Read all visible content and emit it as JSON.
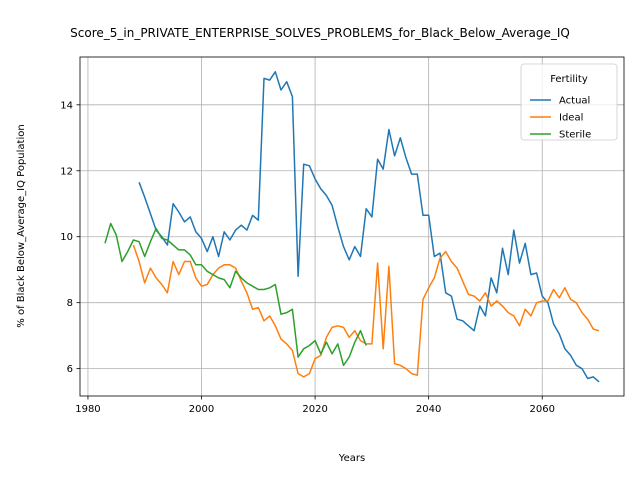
{
  "chart_data": {
    "type": "line",
    "title": "Score_5_in_PRIVATE_ENTERPRISE_SOLVES_PROBLEMS_for_Black_Below_Average_IQ",
    "xlabel": "Years",
    "ylabel": "% of Black Below_Average_IQ Population",
    "xlim": [
      1978.6,
      2074.4
    ],
    "ylim": [
      5.17,
      15.45
    ],
    "xticks": [
      1980,
      2000,
      2020,
      2040,
      2060
    ],
    "yticks": [
      6,
      8,
      10,
      12,
      14
    ],
    "grid": true,
    "legend": {
      "title": "Fertility",
      "position": "top-right"
    },
    "series": [
      {
        "name": "Actual",
        "color": "#1f77b4",
        "x": [
          1989,
          1990,
          1991,
          1992,
          1993,
          1994,
          1995,
          1996,
          1997,
          1998,
          1999,
          2000,
          2001,
          2002,
          2003,
          2004,
          2005,
          2006,
          2007,
          2008,
          2009,
          2010,
          2011,
          2012,
          2013,
          2014,
          2015,
          2016,
          2017,
          2018,
          2019,
          2020,
          2021,
          2022,
          2023,
          2024,
          2025,
          2026,
          2027,
          2028,
          2029,
          2030,
          2031,
          2032,
          2033,
          2034,
          2035,
          2036,
          2037,
          2038,
          2039,
          2040,
          2041,
          2042,
          2043,
          2044,
          2045,
          2046,
          2047,
          2048,
          2049,
          2050,
          2051,
          2052,
          2053,
          2054,
          2055,
          2056,
          2057,
          2058,
          2059,
          2060,
          2061,
          2062,
          2063,
          2064,
          2065,
          2066,
          2067,
          2068,
          2069,
          2070
        ],
        "y": [
          11.65,
          11.2,
          10.7,
          10.2,
          10.0,
          9.75,
          11.0,
          10.75,
          10.45,
          10.6,
          10.15,
          9.95,
          9.55,
          10.0,
          9.4,
          10.15,
          9.9,
          10.2,
          10.35,
          10.2,
          10.65,
          10.5,
          14.8,
          14.75,
          15.0,
          14.45,
          14.7,
          14.25,
          8.8,
          12.2,
          12.15,
          11.75,
          11.45,
          11.25,
          10.95,
          10.3,
          9.7,
          9.3,
          9.7,
          9.4,
          10.85,
          10.6,
          12.35,
          12.05,
          13.25,
          12.45,
          13.0,
          12.4,
          11.9,
          11.9,
          10.65,
          10.65,
          9.4,
          9.5,
          8.3,
          8.2,
          7.5,
          7.45,
          7.3,
          7.15,
          7.9,
          7.6,
          8.75,
          8.3,
          9.65,
          8.85,
          10.2,
          9.2,
          9.8,
          8.85,
          8.9,
          8.2,
          8.0,
          7.35,
          7.05,
          6.6,
          6.4,
          6.1,
          6.0,
          5.7,
          5.75,
          5.6
        ]
      },
      {
        "name": "Ideal",
        "color": "#ff7f0e",
        "x": [
          1988,
          1989,
          1990,
          1991,
          1992,
          1993,
          1994,
          1995,
          1996,
          1997,
          1998,
          1999,
          2000,
          2001,
          2002,
          2003,
          2004,
          2005,
          2006,
          2007,
          2008,
          2009,
          2010,
          2011,
          2012,
          2013,
          2014,
          2015,
          2016,
          2017,
          2018,
          2019,
          2020,
          2021,
          2022,
          2023,
          2024,
          2025,
          2026,
          2027,
          2028,
          2029,
          2030,
          2031,
          2032,
          2033,
          2034,
          2035,
          2036,
          2037,
          2038,
          2039,
          2040,
          2041,
          2042,
          2043,
          2044,
          2045,
          2046,
          2047,
          2048,
          2049,
          2050,
          2051,
          2052,
          2053,
          2054,
          2055,
          2056,
          2057,
          2058,
          2059,
          2060,
          2061,
          2062,
          2063,
          2064,
          2065,
          2066,
          2067,
          2068,
          2069,
          2070
        ],
        "y": [
          9.75,
          9.25,
          8.6,
          9.05,
          8.75,
          8.55,
          8.3,
          9.25,
          8.85,
          9.25,
          9.25,
          8.75,
          8.5,
          8.55,
          8.85,
          9.05,
          9.15,
          9.15,
          9.05,
          8.65,
          8.3,
          7.8,
          7.85,
          7.45,
          7.6,
          7.3,
          6.9,
          6.75,
          6.55,
          5.85,
          5.75,
          5.85,
          6.3,
          6.4,
          6.95,
          7.25,
          7.3,
          7.25,
          6.95,
          7.15,
          6.85,
          6.75,
          6.75,
          9.2,
          6.6,
          9.1,
          6.15,
          6.1,
          6.0,
          5.85,
          5.8,
          8.1,
          8.45,
          8.75,
          9.35,
          9.55,
          9.25,
          9.05,
          8.65,
          8.25,
          8.2,
          8.05,
          8.3,
          7.9,
          8.05,
          7.9,
          7.7,
          7.6,
          7.3,
          7.8,
          7.6,
          8.0,
          8.05,
          8.05,
          8.4,
          8.15,
          8.45,
          8.1,
          8.0,
          7.7,
          7.5,
          7.2,
          7.15
        ]
      },
      {
        "name": "Sterile",
        "color": "#2ca02c",
        "x": [
          1983,
          1984,
          1985,
          1986,
          1987,
          1988,
          1989,
          1990,
          1991,
          1992,
          1993,
          1994,
          1995,
          1996,
          1997,
          1998,
          1999,
          2000,
          2001,
          2002,
          2003,
          2004,
          2005,
          2006,
          2007,
          2008,
          2009,
          2010,
          2011,
          2012,
          2013,
          2014,
          2015,
          2016,
          2017,
          2018,
          2019,
          2020,
          2021,
          2022,
          2023,
          2024,
          2025,
          2026,
          2027,
          2028,
          2029
        ],
        "y": [
          9.8,
          10.4,
          10.05,
          9.25,
          9.55,
          9.9,
          9.85,
          9.4,
          9.85,
          10.25,
          9.95,
          9.9,
          9.75,
          9.6,
          9.6,
          9.45,
          9.15,
          9.15,
          8.95,
          8.85,
          8.75,
          8.7,
          8.45,
          8.95,
          8.75,
          8.6,
          8.5,
          8.4,
          8.4,
          8.45,
          8.55,
          7.65,
          7.7,
          7.8,
          6.35,
          6.6,
          6.7,
          6.85,
          6.45,
          6.8,
          6.45,
          6.75,
          6.1,
          6.35,
          6.8,
          7.15,
          6.7
        ]
      }
    ]
  }
}
